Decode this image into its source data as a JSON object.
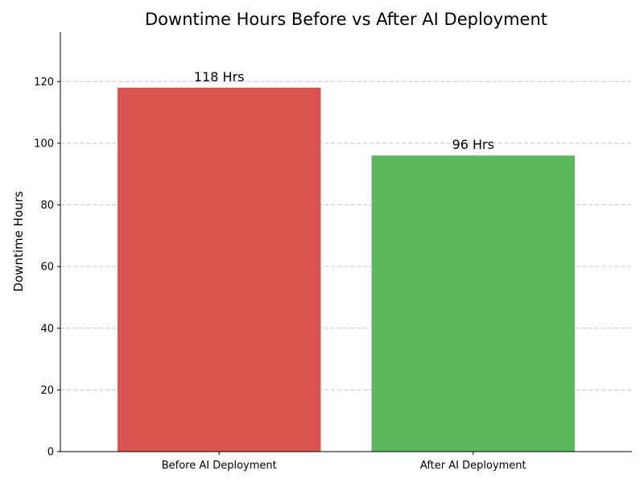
{
  "chart_data": {
    "type": "bar",
    "title": "Downtime Hours Before vs After AI Deployment",
    "xlabel": "",
    "ylabel": "Downtime Hours",
    "categories": [
      "Before AI Deployment",
      "After AI Deployment"
    ],
    "values": [
      118,
      96
    ],
    "data_labels": [
      "118 Hrs",
      "96 Hrs"
    ],
    "colors": [
      "#d9534f",
      "#5cb85c"
    ],
    "ylim": [
      0,
      136
    ],
    "yticks": [
      0,
      20,
      40,
      60,
      80,
      100,
      120
    ],
    "grid": "y-axis dashed",
    "legend": "none"
  }
}
